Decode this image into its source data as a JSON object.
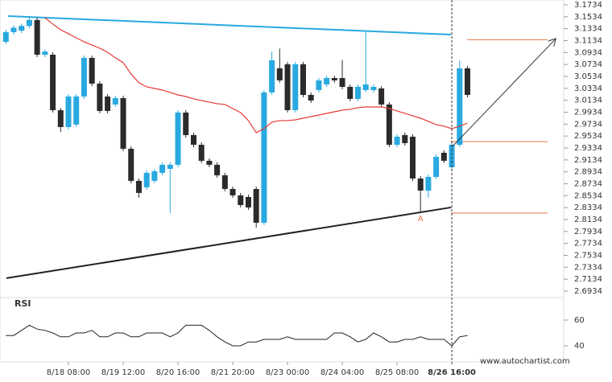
{
  "chart_data": [
    {
      "type": "candlestick",
      "xlim": [
        -0.75,
        71.3
      ],
      "xticks": [
        {
          "value": 8,
          "label": "8/18 08:00"
        },
        {
          "value": 15,
          "label": "8/19 12:00"
        },
        {
          "value": 22,
          "label": "8/20 16:00"
        },
        {
          "value": 29,
          "label": "8/21 20:00"
        },
        {
          "value": 36,
          "label": "8/23 00:00"
        },
        {
          "value": 43,
          "label": "8/24 04:00"
        },
        {
          "value": 50,
          "label": "8/25 08:00"
        },
        {
          "value": 57,
          "label": "8/26 16:00"
        }
      ],
      "ylim": [
        2.6934,
        3.1734
      ],
      "yticks": [
        2.6934,
        2.7134,
        2.7334,
        2.7534,
        2.7734,
        2.7934,
        2.8134,
        2.8334,
        2.8534,
        2.8734,
        2.8934,
        2.9134,
        2.9334,
        2.9534,
        2.9734,
        2.9934,
        3.0134,
        3.0334,
        3.0534,
        3.0734,
        3.0934,
        3.1134,
        3.1334,
        3.1534,
        3.1734
      ],
      "up_color": "#29a9e0",
      "down_color": "#2b2b2b",
      "open": [
        3.1114,
        3.1276,
        3.13,
        3.138,
        3.148,
        3.0898,
        3.0898,
        2.9968,
        2.9685,
        2.9726,
        3.0197,
        3.0844,
        3.0413,
        3.0197,
        3.0063,
        3.017,
        2.9321,
        2.8782,
        2.8674,
        2.8782,
        2.8917,
        2.8984,
        2.9052,
        2.9928,
        2.955,
        2.9388,
        2.9119,
        2.9052,
        2.8876,
        2.8647,
        2.8539,
        2.8512,
        2.8647,
        2.8081,
        3.0265,
        3.0669,
        3.0737,
        2.9968,
        3.0737,
        3.0224,
        3.0305,
        3.0399,
        3.0507,
        3.0507,
        3.0359,
        3.0157,
        3.0305,
        3.0305,
        3.0332,
        3.0063,
        2.9388,
        2.955,
        2.9523,
        2.8822,
        2.862,
        2.8849,
        2.9254,
        2.9011,
        2.9388,
        3.0669
      ],
      "high": [
        3.1316,
        3.139,
        3.142,
        3.154,
        3.152,
        3.099,
        3.0938,
        3.0008,
        3.0237,
        3.0237,
        3.0884,
        3.0884,
        3.0453,
        3.0237,
        3.021,
        3.021,
        2.9361,
        2.8822,
        2.8957,
        2.8984,
        2.9092,
        2.9092,
        2.9968,
        2.9968,
        2.959,
        2.9428,
        2.9159,
        2.9092,
        2.8916,
        2.8687,
        2.8579,
        2.8552,
        2.8687,
        3.0305,
        3.095,
        3.1,
        3.0777,
        3.0777,
        3.0777,
        3.0264,
        3.0507,
        3.0547,
        3.0547,
        3.081,
        3.0399,
        3.0399,
        3.129,
        3.0399,
        3.0372,
        3.0103,
        2.9563,
        2.959,
        2.9563,
        2.8862,
        2.8889,
        2.9226,
        2.9294,
        2.9428,
        3.08,
        3.0709
      ],
      "low": [
        3.1074,
        3.1236,
        3.126,
        3.134,
        3.0858,
        3.0858,
        2.9928,
        2.96,
        2.9645,
        2.9686,
        3.0157,
        3.0373,
        2.9915,
        2.9915,
        3.0023,
        2.9281,
        2.8742,
        2.85,
        2.8634,
        2.8742,
        2.8877,
        2.8243,
        2.9012,
        2.951,
        2.9348,
        2.9079,
        2.9012,
        2.8836,
        2.8607,
        2.8499,
        2.8337,
        2.8297,
        2.8,
        2.8041,
        3.0225,
        3.0427,
        2.9928,
        2.9928,
        3.0184,
        3.009,
        3.0265,
        3.0359,
        3.0427,
        3.0319,
        3.0117,
        3.0117,
        3.0265,
        3.0265,
        3.0023,
        2.9348,
        2.9348,
        2.9375,
        2.8782,
        2.827,
        2.85,
        2.8809,
        2.9079,
        2.8971,
        2.9348,
        3.0184
      ],
      "close": [
        3.1276,
        3.135,
        3.138,
        3.148,
        3.0898,
        3.095,
        2.9968,
        2.9685,
        3.0197,
        3.0197,
        3.0844,
        3.0413,
        2.9955,
        2.9955,
        3.017,
        2.9321,
        2.8782,
        2.858,
        2.8917,
        2.8944,
        2.9052,
        2.9052,
        2.9928,
        2.955,
        2.9388,
        2.9119,
        2.9052,
        2.8876,
        2.8647,
        2.8539,
        2.8377,
        2.8337,
        2.8081,
        3.0265,
        3.0804,
        3.0467,
        2.9968,
        3.0737,
        3.0224,
        3.013,
        3.0467,
        3.0507,
        3.0467,
        3.0359,
        3.0157,
        3.0359,
        3.0399,
        3.0359,
        3.0063,
        2.9388,
        2.9523,
        2.9415,
        2.8822,
        2.862,
        2.8849,
        2.9186,
        2.9119,
        2.9388,
        3.0669,
        3.0224
      ],
      "moving_average": {
        "color": "#e53935",
        "values": [
          null,
          null,
          null,
          null,
          null,
          3.1518,
          3.1411,
          3.1316,
          3.1249,
          3.1181,
          3.1114,
          3.106,
          3.1006,
          3.0939,
          3.0845,
          3.0764,
          3.0575,
          3.0427,
          3.0359,
          3.0332,
          3.0305,
          3.0265,
          3.0224,
          3.0197,
          3.0157,
          3.013,
          3.0103,
          3.0076,
          3.0063,
          2.9995,
          2.9928,
          2.9793,
          2.9591,
          2.9658,
          2.9766,
          2.9793,
          2.9793,
          2.9806,
          2.9833,
          2.986,
          2.9887,
          2.9914,
          2.9941,
          2.9968,
          2.9982,
          3.0009,
          3.0022,
          3.0022,
          3.0022,
          2.9995,
          2.9955,
          2.9914,
          2.9874,
          2.9833,
          2.978,
          2.9726,
          2.9699,
          2.9658,
          2.9699,
          2.9752
        ]
      },
      "lines": [
        {
          "color": "#29a9e0",
          "x": [
            0.28,
            56.9
          ],
          "y": [
            3.1545,
            3.1235
          ]
        },
        {
          "color": "#222222",
          "x": [
            0.07,
            56.9
          ],
          "y": [
            2.7151,
            2.8337
          ]
        }
      ],
      "levels": {
        "color": "#e8744a",
        "values": [
          3.115,
          2.944,
          2.8243
        ]
      },
      "arrow": {
        "x": [
          57.1,
          70.3
        ],
        "y": [
          2.9362,
          3.1167
        ]
      },
      "annotations": [
        {
          "text": "A",
          "x": 53,
          "y": 2.8148
        }
      ]
    },
    {
      "type": "line",
      "title": "RSI",
      "color": "#222222",
      "ylim": [
        30,
        70
      ],
      "yticks": [
        60,
        40
      ],
      "values": [
        48,
        48,
        52,
        56,
        53,
        52,
        50,
        47,
        47,
        50,
        50,
        52,
        47,
        47,
        50,
        50,
        47,
        47,
        50,
        50,
        50,
        47,
        50,
        56,
        56,
        56,
        52,
        47,
        43,
        40,
        40,
        43,
        43,
        45,
        45,
        45,
        47,
        45,
        45,
        45,
        45,
        45,
        50,
        50,
        47,
        43,
        45,
        50,
        47,
        43,
        43,
        45,
        45,
        47,
        45,
        45,
        45,
        40,
        47,
        48
      ]
    }
  ],
  "footer": "www.autochartist.com"
}
